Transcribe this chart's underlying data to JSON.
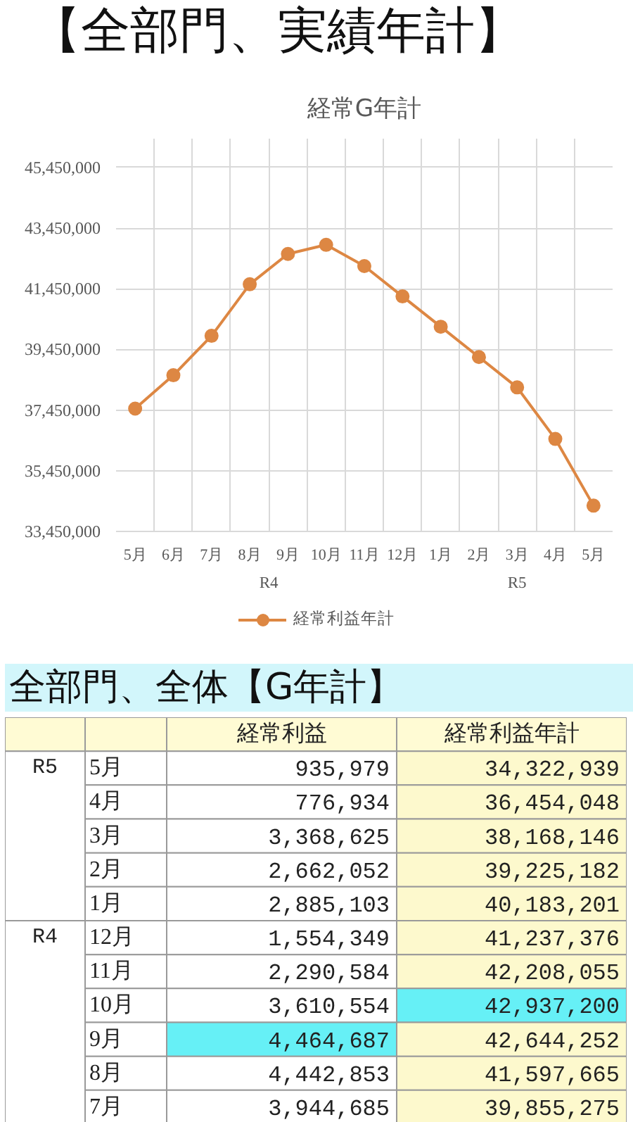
{
  "chart_data": [
    {
      "type": "line",
      "title": "【全部門、実績年計】",
      "subtitle": "経常G年計",
      "categories": [
        "5月",
        "6月",
        "7月",
        "8月",
        "9月",
        "10月",
        "11月",
        "12月",
        "1月",
        "2月",
        "3月",
        "4月",
        "5月"
      ],
      "annotations": [
        "R4",
        "R5"
      ],
      "series": [
        {
          "name": "経常利益年計",
          "color": "#dd8743",
          "values": [
            37500000,
            38600000,
            39900000,
            41600000,
            42600000,
            42900000,
            42200000,
            41200000,
            40200000,
            39200000,
            38200000,
            36500000,
            34300000
          ]
        }
      ],
      "ylim": [
        33450000,
        46400000
      ],
      "yticks": [
        {
          "value": 33450000,
          "label": "33,450,000"
        },
        {
          "value": 35450000,
          "label": "35,450,000"
        },
        {
          "value": 37450000,
          "label": "37,450,000"
        },
        {
          "value": 39450000,
          "label": "39,450,000"
        },
        {
          "value": 41450000,
          "label": "41,450,000"
        },
        {
          "value": 43450000,
          "label": "43,450,000"
        },
        {
          "value": 45450000,
          "label": "45,450,000"
        }
      ],
      "grid": true,
      "legend": "bottom",
      "marker": "circle",
      "line_style": "solid"
    },
    {
      "type": "heatmap",
      "title": "全部門、全体【G年計】",
      "categories": [
        "経常利益",
        "経常利益年計"
      ],
      "y_categories": [
        "5月",
        "4月",
        "3月",
        "2月",
        "1月",
        "12月",
        "11月",
        "10月",
        "9月",
        "8月",
        "7月"
      ],
      "y2_categories": [
        "R5",
        null,
        null,
        null,
        null,
        "R4",
        null,
        null,
        null,
        null,
        null
      ],
      "cells": [
        [
          935979,
          34322939
        ],
        [
          776934,
          36454048
        ],
        [
          3368625,
          38168146
        ],
        [
          2662052,
          39225182
        ],
        [
          2885103,
          40183201
        ],
        [
          1554349,
          41237376
        ],
        [
          2290584,
          42208055
        ],
        [
          3610554,
          42937200
        ],
        [
          4464687,
          42644252
        ],
        [
          4442853,
          41597665
        ],
        [
          3944685,
          39855275
        ]
      ],
      "cell_labels": [
        [
          "935,979",
          "34,322,939"
        ],
        [
          "776,934",
          "36,454,048"
        ],
        [
          "3,368,625",
          "38,168,146"
        ],
        [
          "2,662,052",
          "39,225,182"
        ],
        [
          "2,885,103",
          "40,183,201"
        ],
        [
          "1,554,349",
          "41,237,376"
        ],
        [
          "2,290,584",
          "42,208,055"
        ],
        [
          "3,610,554",
          "42,937,200"
        ],
        [
          "4,464,687",
          "42,644,252"
        ],
        [
          "4,442,853",
          "41,597,665"
        ],
        [
          "3,944,685",
          "39,855,275"
        ]
      ],
      "colors": [
        [
          "#ffffff",
          "#fdf9cd"
        ],
        [
          "#ffffff",
          "#fdf9cd"
        ],
        [
          "#ffffff",
          "#fdf9cd"
        ],
        [
          "#ffffff",
          "#fdf9cd"
        ],
        [
          "#ffffff",
          "#fdf9cd"
        ],
        [
          "#ffffff",
          "#fdf9cd"
        ],
        [
          "#ffffff",
          "#fdf9cd"
        ],
        [
          "#ffffff",
          "#66f0f6"
        ],
        [
          "#66f0f6",
          "#fdf9cd"
        ],
        [
          "#ffffff",
          "#fdf9cd"
        ],
        [
          "#ffffff",
          "#fdf9cd"
        ]
      ]
    }
  ]
}
